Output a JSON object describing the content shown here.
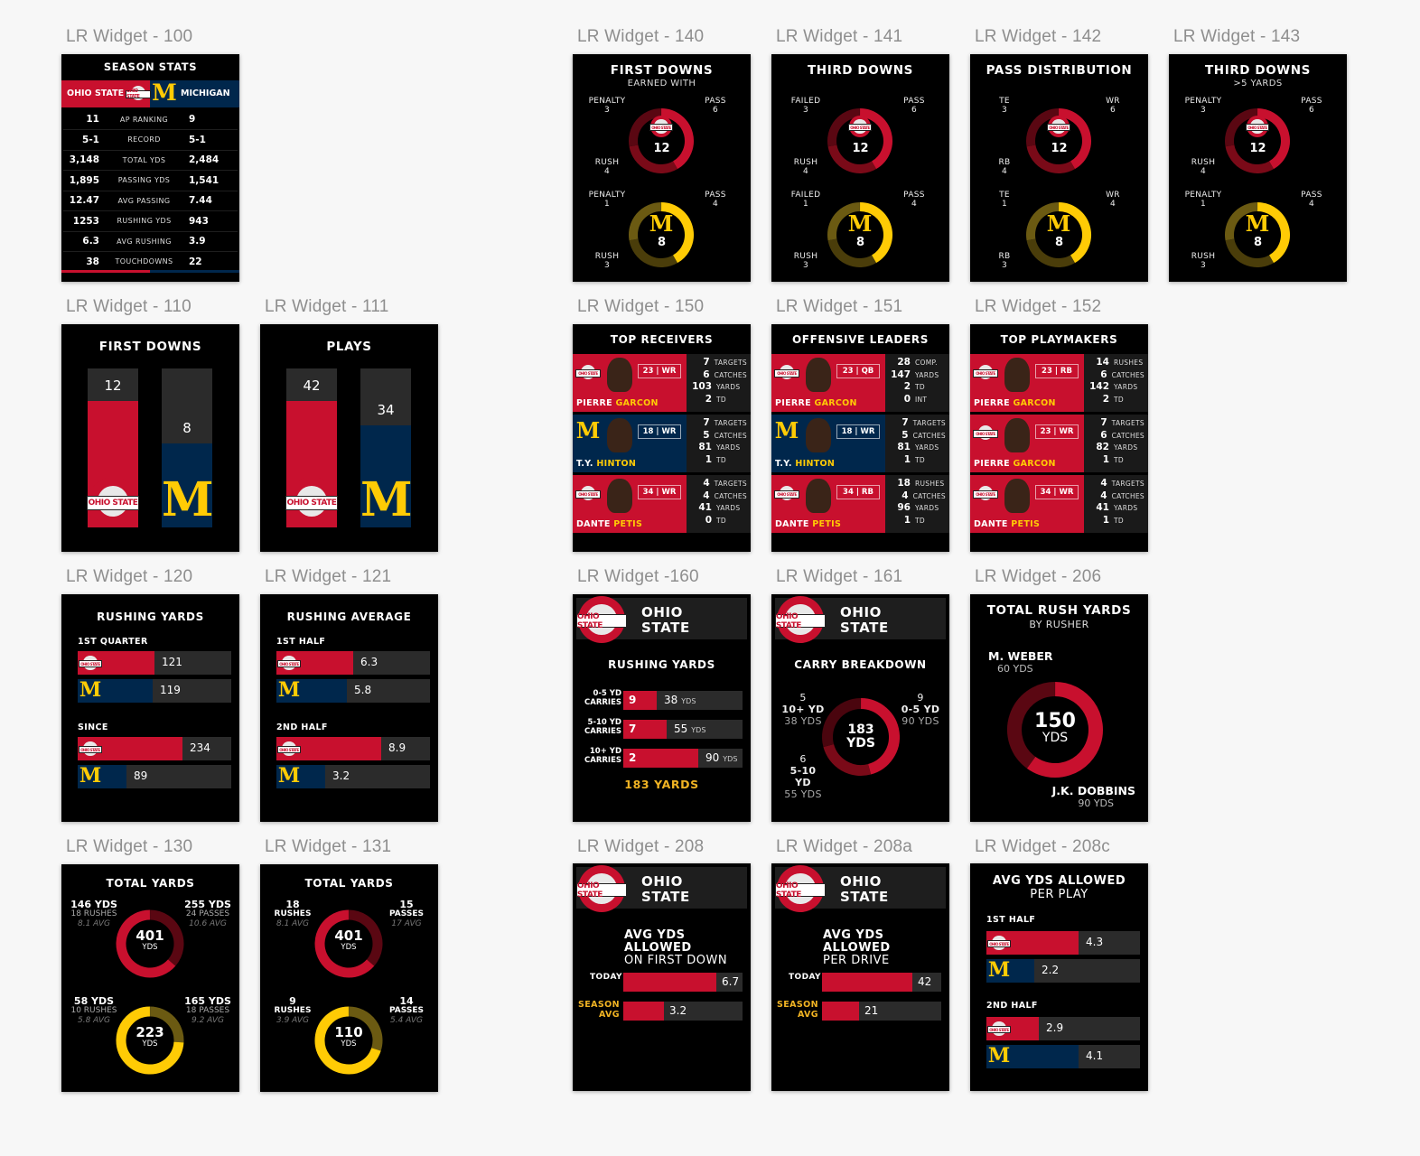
{
  "captions": {
    "w100": "LR Widget - 100",
    "w110": "LR Widget - 110",
    "w111": "LR Widget - 111",
    "w120": "LR Widget - 120",
    "w121": "LR Widget - 121",
    "w130": "LR Widget - 130",
    "w131": "LR Widget - 131",
    "w140": "LR Widget - 140",
    "w141": "LR Widget - 141",
    "w142": "LR Widget - 142",
    "w143": "LR Widget - 143",
    "w150": "LR Widget - 150",
    "w151": "LR Widget - 151",
    "w152": "LR Widget - 152",
    "w160": "LR Widget -160",
    "w161": "LR Widget - 161",
    "w206": "LR Widget - 206",
    "w208": "LR Widget - 208",
    "w208a": "LR Widget - 208a",
    "w208c": "LR Widget - 208c"
  },
  "colors": {
    "ohio_red": "#c8102e",
    "michigan_blue": "#00274c",
    "michigan_maize": "#ffcb05",
    "card_bg": "#000000"
  },
  "logos": {
    "ohio_text": "OHIO STATE",
    "michigan_letter": "M"
  },
  "season_stats": {
    "title": "SEASON STATS",
    "team_a": "OHIO STATE",
    "team_b": "MICHIGAN",
    "rows": [
      {
        "a": "11",
        "label": "AP RANKING",
        "b": "9"
      },
      {
        "a": "5-1",
        "label": "RECORD",
        "b": "5-1"
      },
      {
        "a": "3,148",
        "label": "TOTAL YDS",
        "b": "2,484"
      },
      {
        "a": "1,895",
        "label": "PASSING YDS",
        "b": "1,541"
      },
      {
        "a": "12.47",
        "label": "AVG PASSING",
        "b": "7.44"
      },
      {
        "a": "1253",
        "label": "RUSHING YDS",
        "b": "943"
      },
      {
        "a": "6.3",
        "label": "AVG RUSHING",
        "b": "3.9"
      },
      {
        "a": "38",
        "label": "TOUCHDOWNS",
        "b": "22"
      }
    ]
  },
  "first_downs_bar": {
    "title": "FIRST DOWNS",
    "ohio": "12",
    "michigan": "8",
    "ohio_value": 12,
    "michigan_value": 8
  },
  "plays_bar": {
    "title": "PLAYS",
    "ohio": "42",
    "michigan": "34",
    "ohio_value": 42,
    "michigan_value": 34
  },
  "rushing_yards": {
    "title": "RUSHING YARDS",
    "g1": {
      "label": "1ST QUARTER",
      "ohio": "121",
      "mich": "119",
      "ohio_frac": 0.5,
      "mich_frac": 0.49
    },
    "g2": {
      "label": "SINCE",
      "ohio": "234",
      "mich": "89",
      "ohio_frac": 0.68,
      "mich_frac": 0.32
    }
  },
  "rushing_average": {
    "title": "RUSHING AVERAGE",
    "g1": {
      "label": "1ST HALF",
      "ohio": "6.3",
      "mich": "5.8",
      "ohio_frac": 0.5,
      "mich_frac": 0.46
    },
    "g2": {
      "label": "2ND HALF",
      "ohio": "8.9",
      "mich": "3.2",
      "ohio_frac": 0.68,
      "mich_frac": 0.32
    }
  },
  "total_yards_130": {
    "title": "TOTAL YARDS",
    "ohio": {
      "total": "401",
      "unit": "YDS",
      "left": {
        "l1": "146 YDS",
        "l2": "18 RUSHES",
        "l3": "8.1 AVG"
      },
      "right": {
        "l1": "255 YDS",
        "l2": "24 PASSES",
        "l3": "10.6 AVG"
      },
      "frac": 0.364
    },
    "mich": {
      "total": "223",
      "unit": "YDS",
      "left": {
        "l1": "58 YDS",
        "l2": "10 RUSHES",
        "l3": "5.8 AVG"
      },
      "right": {
        "l1": "165 YDS",
        "l2": "18 PASSES",
        "l3": "9.2 AVG"
      },
      "frac": 0.26
    }
  },
  "total_yards_131": {
    "title": "TOTAL YARDS",
    "ohio": {
      "total": "401",
      "unit": "YDS",
      "left": {
        "l1": "18",
        "l2": "RUSHES",
        "l3": "8.1 AVG"
      },
      "right": {
        "l1": "15",
        "l2": "PASSES",
        "l3": "17 AVG"
      },
      "frac": 0.364
    },
    "mich": {
      "total": "110",
      "unit": "YDS",
      "left": {
        "l1": "9",
        "l2": "RUSHES",
        "l3": "3.9 AVG"
      },
      "right": {
        "l1": "14",
        "l2": "PASSES",
        "l3": "5.4 AVG"
      },
      "frac": 0.3
    }
  },
  "donut_widgets": [
    {
      "id": "w140",
      "title": "FIRST DOWNS",
      "subtitle": "EARNED WITH",
      "ohio": {
        "tl": "PENALTY",
        "tlv": "3",
        "tr": "PASS",
        "trv": "6",
        "bl": "RUSH",
        "blv": "4",
        "center": "12"
      },
      "mich": {
        "tl": "PENALTY",
        "tlv": "1",
        "tr": "PASS",
        "trv": "4",
        "bl": "RUSH",
        "blv": "3",
        "center": "8"
      }
    },
    {
      "id": "w141",
      "title": "THIRD DOWNS",
      "subtitle": "",
      "ohio": {
        "tl": "FAILED",
        "tlv": "3",
        "tr": "PASS",
        "trv": "6",
        "bl": "RUSH",
        "blv": "4",
        "center": "12"
      },
      "mich": {
        "tl": "FAILED",
        "tlv": "1",
        "tr": "PASS",
        "trv": "4",
        "bl": "RUSH",
        "blv": "3",
        "center": "8"
      }
    },
    {
      "id": "w142",
      "title": "PASS DISTRIBUTION",
      "subtitle": "",
      "ohio": {
        "tl": "TE",
        "tlv": "3",
        "tr": "WR",
        "trv": "6",
        "bl": "RB",
        "blv": "4",
        "center": "12"
      },
      "mich": {
        "tl": "TE",
        "tlv": "1",
        "tr": "WR",
        "trv": "4",
        "bl": "RB",
        "blv": "3",
        "center": "8"
      }
    },
    {
      "id": "w143",
      "title": "THIRD DOWNS",
      "subtitle": ">5 YARDS",
      "ohio": {
        "tl": "PENALTY",
        "tlv": "3",
        "tr": "PASS",
        "trv": "6",
        "bl": "RUSH",
        "blv": "4",
        "center": "12"
      },
      "mich": {
        "tl": "PENALTY",
        "tlv": "1",
        "tr": "PASS",
        "trv": "4",
        "bl": "RUSH",
        "blv": "3",
        "center": "8"
      }
    }
  ],
  "player_widgets": [
    {
      "id": "w150",
      "title": "TOP RECEIVERS",
      "players": [
        {
          "team": "ohio",
          "first": "PIERRE",
          "last": "GARCON",
          "tag": "23 | WR",
          "stats": [
            [
              "7",
              "TARGETS"
            ],
            [
              "6",
              "CATCHES"
            ],
            [
              "103",
              "YARDS"
            ],
            [
              "2",
              "TD"
            ]
          ]
        },
        {
          "team": "mich",
          "first": "T.Y.",
          "last": "HINTON",
          "tag": "18 | WR",
          "stats": [
            [
              "7",
              "TARGETS"
            ],
            [
              "5",
              "CATCHES"
            ],
            [
              "81",
              "YARDS"
            ],
            [
              "1",
              "TD"
            ]
          ]
        },
        {
          "team": "ohio",
          "first": "DANTE",
          "last": "PETIS",
          "tag": "34 | WR",
          "stats": [
            [
              "4",
              "TARGETS"
            ],
            [
              "4",
              "CATCHES"
            ],
            [
              "41",
              "YARDS"
            ],
            [
              "0",
              "TD"
            ]
          ]
        }
      ]
    },
    {
      "id": "w151",
      "title": "OFFENSIVE LEADERS",
      "players": [
        {
          "team": "ohio",
          "first": "PIERRE",
          "last": "GARCON",
          "tag": "23 | QB",
          "stats": [
            [
              "28",
              "COMP."
            ],
            [
              "147",
              "YARDS"
            ],
            [
              "2",
              "TD"
            ],
            [
              "0",
              "INT"
            ]
          ]
        },
        {
          "team": "mich",
          "first": "T.Y.",
          "last": "HINTON",
          "tag": "18 | WR",
          "stats": [
            [
              "7",
              "TARGETS"
            ],
            [
              "5",
              "CATCHES"
            ],
            [
              "81",
              "YARDS"
            ],
            [
              "1",
              "TD"
            ]
          ]
        },
        {
          "team": "ohio",
          "first": "DANTE",
          "last": "PETIS",
          "tag": "34 | RB",
          "stats": [
            [
              "18",
              "RUSHES"
            ],
            [
              "4",
              "CATCHES"
            ],
            [
              "96",
              "YARDS"
            ],
            [
              "1",
              "TD"
            ]
          ]
        }
      ]
    },
    {
      "id": "w152",
      "title": "TOP PLAYMAKERS",
      "players": [
        {
          "team": "ohio",
          "first": "PIERRE",
          "last": "GARCON",
          "tag": "23 | RB",
          "stats": [
            [
              "14",
              "RUSHES"
            ],
            [
              "6",
              "CATCHES"
            ],
            [
              "142",
              "YARDS"
            ],
            [
              "2",
              "TD"
            ]
          ]
        },
        {
          "team": "ohio",
          "first": "PIERRE",
          "last": "GARCON",
          "tag": "23 | WR",
          "stats": [
            [
              "7",
              "TARGETS"
            ],
            [
              "6",
              "CATCHES"
            ],
            [
              "82",
              "YARDS"
            ],
            [
              "1",
              "TD"
            ]
          ]
        },
        {
          "team": "ohio",
          "first": "DANTE",
          "last": "PETIS",
          "tag": "34 | WR",
          "stats": [
            [
              "4",
              "TARGETS"
            ],
            [
              "4",
              "CATCHES"
            ],
            [
              "41",
              "YARDS"
            ],
            [
              "1",
              "TD"
            ]
          ]
        }
      ]
    }
  ],
  "rushing_160": {
    "team_l1": "OHIO",
    "team_l2": "STATE",
    "title": "RUSHING YARDS",
    "rows": [
      {
        "l1": "0-5 YD",
        "l2": "CARRIES",
        "carries": "9",
        "yds": "38",
        "unit": "YDS",
        "frac": 0.28
      },
      {
        "l1": "5-10 YD",
        "l2": "CARRIES",
        "carries": "7",
        "yds": "55",
        "unit": "YDS",
        "frac": 0.36
      },
      {
        "l1": "10+ YD",
        "l2": "CARRIES",
        "carries": "2",
        "yds": "90",
        "unit": "YDS",
        "frac": 0.63
      }
    ],
    "total": "183 YARDS"
  },
  "carry_161": {
    "team_l1": "OHIO",
    "team_l2": "STATE",
    "title": "CARRY BREAKDOWN",
    "center_l1": "183",
    "center_l2": "YDS",
    "left_top": {
      "n": "5",
      "l": "10+ YD",
      "y": "38 YDS"
    },
    "left_bot": {
      "n": "6",
      "l": "5-10 YD",
      "y": "55 YDS"
    },
    "right_top": {
      "n": "9",
      "l": "0-5 YD",
      "y": "90 YDS"
    }
  },
  "rush_206": {
    "title": "TOTAL RUSH YARDS",
    "subtitle": "BY RUSHER",
    "center_l1": "150",
    "center_l2": "YDS",
    "top_name": "M. WEBER",
    "top_yds": "60 YDS",
    "bot_name": "J.K. DOBBINS",
    "bot_yds": "90 YDS"
  },
  "allowed_208": {
    "team_l1": "OHIO",
    "team_l2": "STATE",
    "title_l1": "AVG YDS ALLOWED",
    "title_l2": "ON FIRST DOWN",
    "today_label": "TODAY",
    "today": "6.7",
    "today_frac": 0.78,
    "season_l1": "SEASON",
    "season_l2": "AVG",
    "season": "3.2",
    "season_frac": 0.34
  },
  "allowed_208a": {
    "team_l1": "OHIO",
    "team_l2": "STATE",
    "title_l1": "AVG YDS ALLOWED",
    "title_l2": "PER DRIVE",
    "today_label": "TODAY",
    "today": "42",
    "today_frac": 0.76,
    "season_l1": "SEASON",
    "season_l2": "AVG",
    "season": "21",
    "season_frac": 0.31
  },
  "allowed_208c": {
    "title_l1": "AVG YDS ALLOWED",
    "title_l2": "PER PLAY",
    "g1": {
      "label": "1ST HALF",
      "ohio": "4.3",
      "mich": "2.2",
      "ohio_frac": 0.6,
      "mich_frac": 0.31
    },
    "g2": {
      "label": "2ND HALF",
      "ohio": "2.9",
      "mich": "4.1",
      "ohio_frac": 0.34,
      "mich_frac": 0.6
    }
  }
}
